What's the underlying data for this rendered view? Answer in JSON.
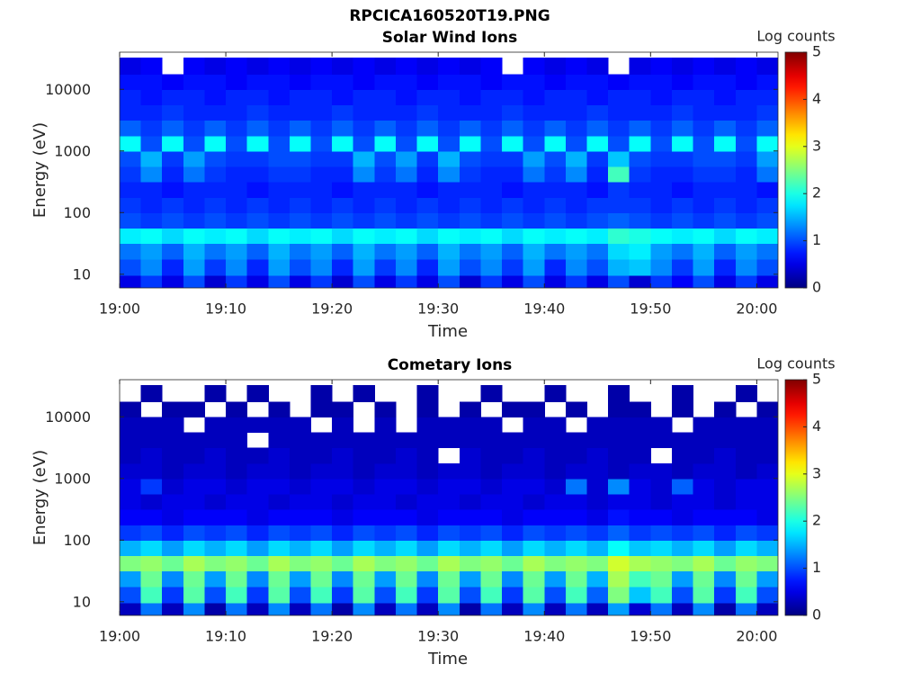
{
  "title": "RPCICA160520T19.PNG",
  "chart_data": [
    {
      "type": "heatmap",
      "title": "Solar Wind Ions",
      "xlabel": "Time",
      "ylabel": "Energy (eV)",
      "x": [
        "19:00",
        "19:02",
        "19:04",
        "19:06",
        "19:08",
        "19:10",
        "19:12",
        "19:14",
        "19:16",
        "19:18",
        "19:20",
        "19:22",
        "19:24",
        "19:26",
        "19:28",
        "19:30",
        "19:32",
        "19:34",
        "19:36",
        "19:38",
        "19:40",
        "19:42",
        "19:44",
        "19:46",
        "19:48",
        "19:50",
        "19:52",
        "19:54",
        "19:56",
        "19:58",
        "20:00"
      ],
      "y": [
        7,
        13,
        24,
        42,
        75,
        130,
        240,
        420,
        750,
        1300,
        2400,
        4200,
        7500,
        13000,
        24000
      ],
      "z": [
        [
          0.5,
          0.9,
          0.5,
          1.0,
          0.4,
          0.9,
          0.5,
          1.0,
          0.5,
          0.9,
          0.4,
          1.0,
          0.5,
          0.9,
          0.5,
          1.0,
          0.4,
          0.9,
          0.5,
          1.0,
          0.5,
          0.9,
          0.5,
          1.0,
          0.4,
          0.9,
          0.6,
          1.0,
          0.5,
          0.9,
          0.5
        ],
        [
          1.0,
          1.3,
          0.8,
          1.4,
          0.9,
          1.3,
          0.8,
          1.4,
          1.0,
          1.3,
          0.8,
          1.4,
          0.9,
          1.3,
          0.8,
          1.4,
          1.0,
          1.3,
          0.9,
          1.4,
          0.8,
          1.3,
          1.0,
          1.5,
          1.6,
          1.3,
          0.9,
          1.4,
          0.8,
          1.3,
          1.0
        ],
        [
          1.2,
          1.4,
          1.1,
          1.5,
          1.2,
          1.4,
          1.1,
          1.5,
          1.2,
          1.4,
          1.1,
          1.5,
          1.2,
          1.4,
          1.1,
          1.5,
          1.2,
          1.4,
          1.1,
          1.5,
          1.2,
          1.4,
          1.2,
          1.7,
          1.8,
          1.4,
          1.2,
          1.5,
          1.1,
          1.4,
          1.2
        ],
        [
          1.8,
          1.9,
          1.7,
          1.9,
          1.8,
          1.9,
          1.7,
          1.9,
          1.8,
          1.9,
          1.7,
          1.9,
          1.8,
          1.9,
          1.7,
          1.9,
          1.8,
          1.9,
          1.7,
          1.9,
          1.8,
          1.9,
          1.8,
          2.1,
          2.0,
          1.9,
          1.8,
          1.9,
          1.7,
          1.9,
          1.8
        ],
        [
          1.0,
          0.9,
          1.0,
          0.9,
          1.0,
          0.9,
          1.0,
          0.9,
          1.0,
          0.9,
          1.0,
          0.9,
          1.0,
          0.9,
          1.0,
          0.9,
          1.0,
          0.9,
          1.0,
          0.9,
          1.0,
          0.9,
          1.0,
          1.1,
          1.0,
          0.9,
          1.0,
          0.9,
          1.0,
          0.9,
          1.0
        ],
        [
          0.9,
          0.8,
          0.9,
          0.8,
          0.9,
          0.8,
          0.9,
          0.8,
          0.9,
          0.8,
          0.9,
          0.8,
          0.9,
          0.8,
          0.9,
          0.8,
          0.9,
          0.8,
          0.9,
          0.8,
          0.9,
          0.8,
          0.9,
          0.9,
          0.9,
          0.8,
          0.9,
          0.8,
          0.9,
          0.8,
          0.9
        ],
        [
          0.8,
          0.8,
          0.7,
          0.8,
          0.8,
          0.8,
          0.7,
          0.8,
          0.8,
          0.8,
          0.7,
          0.8,
          0.8,
          0.8,
          0.7,
          0.8,
          0.8,
          0.8,
          0.7,
          0.8,
          0.8,
          0.8,
          0.7,
          0.9,
          0.8,
          0.8,
          0.7,
          0.8,
          0.8,
          0.8,
          0.7
        ],
        [
          0.9,
          1.3,
          0.8,
          1.2,
          0.9,
          0.8,
          0.8,
          0.9,
          0.9,
          0.8,
          0.8,
          1.3,
          0.9,
          1.2,
          0.8,
          1.3,
          0.9,
          0.8,
          0.8,
          1.2,
          0.9,
          1.3,
          0.8,
          2.2,
          0.9,
          0.8,
          0.8,
          0.9,
          0.9,
          0.8,
          1.2
        ],
        [
          1.0,
          1.5,
          0.9,
          1.4,
          1.0,
          0.9,
          0.9,
          1.0,
          1.0,
          0.9,
          0.9,
          1.5,
          1.0,
          1.4,
          0.9,
          1.5,
          1.0,
          0.9,
          0.9,
          1.4,
          1.0,
          1.5,
          0.9,
          1.6,
          1.0,
          0.9,
          0.9,
          1.0,
          1.0,
          0.9,
          1.4
        ],
        [
          1.9,
          1.0,
          1.9,
          1.0,
          1.9,
          1.0,
          1.9,
          1.0,
          1.9,
          1.0,
          1.9,
          1.0,
          1.9,
          1.0,
          1.9,
          1.0,
          1.9,
          1.0,
          1.9,
          1.0,
          1.9,
          1.0,
          1.9,
          1.0,
          1.9,
          1.0,
          1.9,
          1.0,
          1.9,
          1.0,
          1.9
        ],
        [
          1.1,
          0.9,
          1.1,
          0.9,
          1.1,
          0.9,
          1.1,
          0.9,
          1.1,
          0.9,
          1.1,
          0.9,
          1.1,
          0.9,
          1.1,
          0.9,
          1.1,
          0.9,
          1.1,
          0.9,
          1.1,
          0.9,
          1.1,
          0.9,
          1.1,
          0.9,
          1.1,
          0.9,
          1.1,
          0.9,
          1.1
        ],
        [
          0.8,
          0.8,
          0.9,
          0.8,
          0.8,
          0.8,
          0.9,
          0.8,
          0.8,
          0.8,
          0.9,
          0.8,
          0.8,
          0.8,
          0.9,
          0.8,
          0.8,
          0.8,
          0.9,
          0.8,
          0.8,
          0.8,
          0.9,
          0.8,
          0.8,
          0.8,
          0.9,
          0.8,
          0.8,
          0.8,
          0.9
        ],
        [
          0.8,
          0.7,
          0.8,
          0.8,
          0.7,
          0.8,
          0.8,
          0.7,
          0.8,
          0.8,
          0.7,
          0.8,
          0.8,
          0.7,
          0.8,
          0.8,
          0.7,
          0.8,
          0.8,
          0.7,
          0.8,
          0.8,
          0.7,
          0.8,
          0.8,
          0.7,
          0.8,
          0.8,
          0.7,
          0.8,
          0.8
        ],
        [
          0.7,
          0.7,
          0.6,
          0.7,
          0.7,
          0.6,
          0.7,
          0.7,
          0.6,
          0.7,
          0.7,
          0.6,
          0.7,
          0.7,
          0.6,
          0.7,
          0.7,
          0.6,
          0.7,
          0.7,
          0.6,
          0.7,
          0.7,
          0.6,
          0.7,
          0.7,
          0.6,
          0.7,
          0.7,
          0.6,
          0.7
        ],
        [
          0.5,
          0.6,
          null,
          0.6,
          0.5,
          0.6,
          0.5,
          0.6,
          0.5,
          0.6,
          0.5,
          0.6,
          0.5,
          0.6,
          0.5,
          0.6,
          0.5,
          0.6,
          null,
          0.6,
          0.5,
          0.6,
          0.5,
          null,
          0.5,
          0.6,
          0.5,
          0.6,
          0.5,
          0.6,
          0.5
        ]
      ],
      "xlim": [
        "19:00",
        "20:02"
      ],
      "xticks": [
        "19:00",
        "19:10",
        "19:20",
        "19:30",
        "19:40",
        "19:50",
        "20:00"
      ],
      "ylim": [
        6,
        40000
      ],
      "yticks": [
        10,
        100,
        1000,
        10000
      ],
      "log_y": true,
      "colorbar": {
        "label": "Log counts",
        "lim": [
          0,
          5
        ],
        "ticks": [
          0,
          1,
          2,
          3,
          4,
          5
        ],
        "colormap": "jet"
      }
    },
    {
      "type": "heatmap",
      "title": "Cometary Ions",
      "xlabel": "Time",
      "ylabel": "Energy (eV)",
      "x": [
        "19:00",
        "19:02",
        "19:04",
        "19:06",
        "19:08",
        "19:10",
        "19:12",
        "19:14",
        "19:16",
        "19:18",
        "19:20",
        "19:22",
        "19:24",
        "19:26",
        "19:28",
        "19:30",
        "19:32",
        "19:34",
        "19:36",
        "19:38",
        "19:40",
        "19:42",
        "19:44",
        "19:46",
        "19:48",
        "19:50",
        "19:52",
        "19:54",
        "19:56",
        "19:58",
        "20:00"
      ],
      "y": [
        7,
        13,
        24,
        42,
        75,
        130,
        240,
        420,
        750,
        1300,
        2400,
        4200,
        7500,
        13000,
        24000
      ],
      "z": [
        [
          0.3,
          1.2,
          0.3,
          1.3,
          0.2,
          1.2,
          0.3,
          1.3,
          0.3,
          1.2,
          0.2,
          1.3,
          0.3,
          1.2,
          0.3,
          1.3,
          0.2,
          1.2,
          0.3,
          1.3,
          0.3,
          1.2,
          0.3,
          1.4,
          0.4,
          1.2,
          0.3,
          1.3,
          0.2,
          1.2,
          0.3
        ],
        [
          1.0,
          2.2,
          0.9,
          2.3,
          1.0,
          2.2,
          0.9,
          2.3,
          1.0,
          2.2,
          0.9,
          2.3,
          1.0,
          2.2,
          0.9,
          2.3,
          1.0,
          2.2,
          0.9,
          2.3,
          1.0,
          2.2,
          1.1,
          2.5,
          1.6,
          2.2,
          1.0,
          2.3,
          0.9,
          2.2,
          1.0
        ],
        [
          1.4,
          2.4,
          1.3,
          2.4,
          1.4,
          2.4,
          1.3,
          2.4,
          1.4,
          2.4,
          1.3,
          2.4,
          1.4,
          2.4,
          1.3,
          2.4,
          1.4,
          2.4,
          1.3,
          2.4,
          1.4,
          2.4,
          1.5,
          2.7,
          2.2,
          2.4,
          1.4,
          2.4,
          1.3,
          2.4,
          1.4
        ],
        [
          2.5,
          2.6,
          2.4,
          2.7,
          2.5,
          2.6,
          2.4,
          2.7,
          2.5,
          2.6,
          2.4,
          2.7,
          2.5,
          2.6,
          2.4,
          2.7,
          2.5,
          2.6,
          2.4,
          2.7,
          2.5,
          2.6,
          2.5,
          2.9,
          2.7,
          2.6,
          2.5,
          2.7,
          2.4,
          2.6,
          2.5
        ],
        [
          1.5,
          1.7,
          1.4,
          1.7,
          1.5,
          1.7,
          1.4,
          1.7,
          1.5,
          1.7,
          1.4,
          1.7,
          1.5,
          1.7,
          1.4,
          1.7,
          1.5,
          1.7,
          1.4,
          1.7,
          1.5,
          1.7,
          1.5,
          1.9,
          1.6,
          1.7,
          1.5,
          1.7,
          1.4,
          1.7,
          1.5
        ],
        [
          0.9,
          1.0,
          0.8,
          1.0,
          0.9,
          1.0,
          0.8,
          1.0,
          0.9,
          1.0,
          0.8,
          1.0,
          0.9,
          1.0,
          0.8,
          1.0,
          0.9,
          1.0,
          0.8,
          1.0,
          0.9,
          1.0,
          0.9,
          1.1,
          0.9,
          1.0,
          0.9,
          1.0,
          0.8,
          1.0,
          0.9
        ],
        [
          0.6,
          0.6,
          0.5,
          0.6,
          0.6,
          0.6,
          0.5,
          0.6,
          0.6,
          0.6,
          0.5,
          0.6,
          0.6,
          0.6,
          0.5,
          0.6,
          0.6,
          0.6,
          0.5,
          0.6,
          0.6,
          0.6,
          0.5,
          0.7,
          0.6,
          0.6,
          0.5,
          0.6,
          0.6,
          0.6,
          0.5
        ],
        [
          0.5,
          0.4,
          0.5,
          0.5,
          0.4,
          0.5,
          0.5,
          0.4,
          0.5,
          0.5,
          0.4,
          0.5,
          0.5,
          0.4,
          0.5,
          0.5,
          0.4,
          0.5,
          0.5,
          0.4,
          0.5,
          0.5,
          0.4,
          0.5,
          0.5,
          0.4,
          0.5,
          0.5,
          0.4,
          0.5,
          0.5
        ],
        [
          0.5,
          0.9,
          0.4,
          0.5,
          0.5,
          0.4,
          0.5,
          0.5,
          0.4,
          0.5,
          0.5,
          0.4,
          0.5,
          0.5,
          0.4,
          0.5,
          0.5,
          0.4,
          0.5,
          0.5,
          0.4,
          1.2,
          0.4,
          1.3,
          0.5,
          0.4,
          1.1,
          0.5,
          0.4,
          0.5,
          0.5
        ],
        [
          0.4,
          0.4,
          0.3,
          0.4,
          0.4,
          0.3,
          0.4,
          0.4,
          0.3,
          0.4,
          0.4,
          0.3,
          0.4,
          0.4,
          0.3,
          0.4,
          0.4,
          0.3,
          0.4,
          0.4,
          0.3,
          0.4,
          0.4,
          0.3,
          0.4,
          0.4,
          0.3,
          0.4,
          0.4,
          0.3,
          0.4
        ],
        [
          0.3,
          0.4,
          0.3,
          0.3,
          0.4,
          0.3,
          0.3,
          0.4,
          0.3,
          0.3,
          0.4,
          0.3,
          0.3,
          0.4,
          0.3,
          null,
          0.4,
          0.3,
          0.3,
          0.4,
          0.3,
          0.3,
          0.4,
          0.3,
          0.3,
          null,
          0.3,
          0.3,
          0.4,
          0.3,
          0.3
        ],
        [
          0.3,
          0.3,
          0.3,
          0.3,
          0.3,
          0.3,
          null,
          0.3,
          0.3,
          0.3,
          0.3,
          0.3,
          0.3,
          0.3,
          0.3,
          0.3,
          0.3,
          0.3,
          0.3,
          0.3,
          0.3,
          0.3,
          0.3,
          0.3,
          0.3,
          0.3,
          0.3,
          0.3,
          0.3,
          0.3,
          0.3
        ],
        [
          0.3,
          0.3,
          0.3,
          null,
          0.3,
          0.3,
          0.3,
          0.3,
          0.3,
          null,
          0.3,
          null,
          0.3,
          null,
          0.3,
          0.3,
          0.3,
          0.3,
          null,
          0.3,
          0.3,
          null,
          0.3,
          0.3,
          0.3,
          0.3,
          null,
          0.3,
          0.3,
          0.3,
          0.3
        ],
        [
          0.2,
          null,
          0.2,
          0.2,
          null,
          0.2,
          null,
          0.2,
          null,
          0.2,
          0.2,
          null,
          0.2,
          null,
          0.2,
          null,
          0.2,
          null,
          0.2,
          0.2,
          null,
          0.2,
          null,
          0.2,
          0.2,
          null,
          0.2,
          null,
          0.2,
          null,
          0.2
        ],
        [
          null,
          0.2,
          null,
          null,
          0.2,
          null,
          0.2,
          null,
          null,
          0.2,
          null,
          0.2,
          null,
          null,
          0.2,
          null,
          null,
          0.2,
          null,
          null,
          0.2,
          null,
          null,
          0.2,
          null,
          null,
          0.2,
          null,
          null,
          0.2,
          null
        ]
      ],
      "xlim": [
        "19:00",
        "20:02"
      ],
      "xticks": [
        "19:00",
        "19:10",
        "19:20",
        "19:30",
        "19:40",
        "19:50",
        "20:00"
      ],
      "ylim": [
        6,
        40000
      ],
      "yticks": [
        10,
        100,
        1000,
        10000
      ],
      "log_y": true,
      "colorbar": {
        "label": "Log counts",
        "lim": [
          0,
          5
        ],
        "ticks": [
          0,
          1,
          2,
          3,
          4,
          5
        ],
        "colormap": "jet"
      }
    }
  ]
}
